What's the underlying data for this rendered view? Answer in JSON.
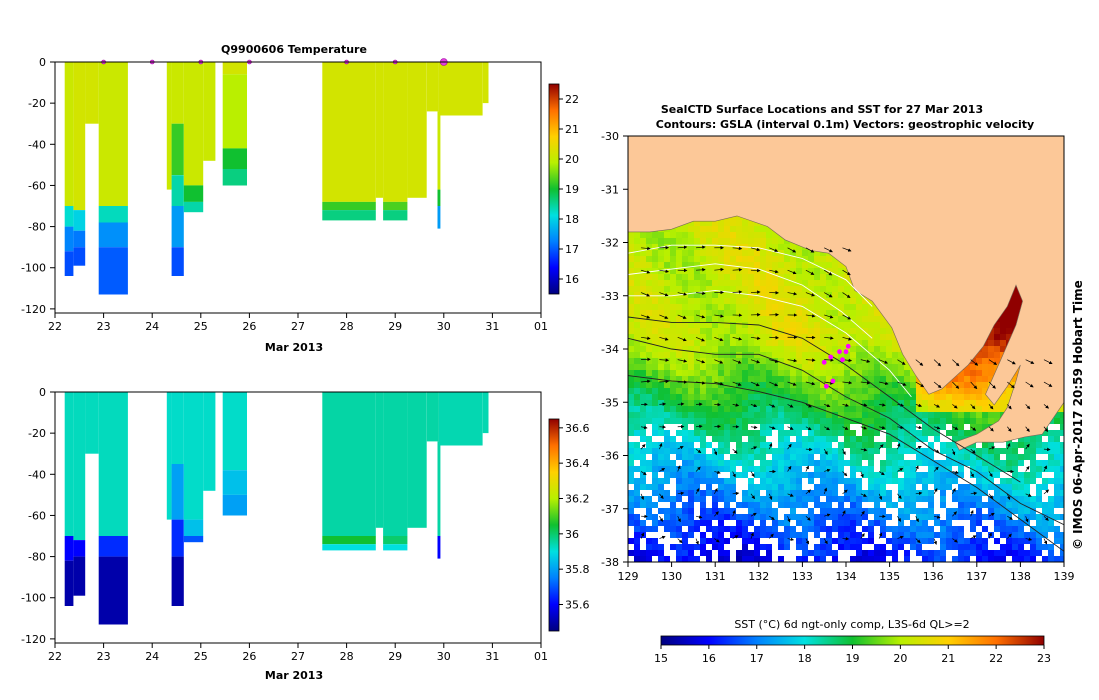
{
  "chart_data": [
    {
      "type": "heatmap",
      "id": "temperature-profile",
      "title": "Q9900606  Temperature",
      "xlabel": "Mar 2013",
      "ylabel": "",
      "x_ticks": [
        "22",
        "23",
        "24",
        "25",
        "26",
        "27",
        "28",
        "29",
        "30",
        "31",
        "01"
      ],
      "y_ticks": [
        "0",
        "-20",
        "-40",
        "-60",
        "-80",
        "-100",
        "-120"
      ],
      "xlim": [
        22,
        32
      ],
      "ylim": [
        -122,
        0
      ],
      "colorbar": {
        "min": 15.5,
        "max": 22.5,
        "ticks": [
          "16",
          "17",
          "18",
          "19",
          "20",
          "21",
          "22"
        ]
      },
      "profile_markers": [
        23.0,
        24.0,
        25.0,
        26.0,
        28.0,
        29.0,
        30.0
      ],
      "profiles": [
        {
          "x0": 22.2,
          "x1": 22.38,
          "bands": [
            [
              0,
              -70,
              20.1
            ],
            [
              -70,
              -80,
              18.2
            ],
            [
              -80,
              -92,
              17.3
            ],
            [
              -92,
              -104,
              16.9
            ]
          ]
        },
        {
          "x0": 22.38,
          "x1": 22.62,
          "bands": [
            [
              0,
              -72,
              20.2
            ],
            [
              -72,
              -82,
              18.0
            ],
            [
              -82,
              -90,
              17.2
            ],
            [
              -90,
              -99,
              16.9
            ]
          ]
        },
        {
          "x0": 22.62,
          "x1": 22.9,
          "bands": [
            [
              0,
              -30,
              20.2
            ]
          ]
        },
        {
          "x0": 22.9,
          "x1": 23.5,
          "bands": [
            [
              0,
              -70,
              20.1
            ],
            [
              -70,
              -78,
              18.3
            ],
            [
              -78,
              -90,
              17.4
            ],
            [
              -90,
              -113,
              17.0
            ]
          ]
        },
        {
          "x0": 24.3,
          "x1": 24.4,
          "bands": [
            [
              0,
              -62,
              20.1
            ]
          ]
        },
        {
          "x0": 24.4,
          "x1": 24.65,
          "bands": [
            [
              0,
              -30,
              20.1
            ],
            [
              -30,
              -55,
              19.2
            ],
            [
              -55,
              -70,
              18.4
            ],
            [
              -70,
              -90,
              17.5
            ],
            [
              -90,
              -104,
              16.9
            ]
          ]
        },
        {
          "x0": 24.65,
          "x1": 25.05,
          "bands": [
            [
              0,
              -60,
              20.1
            ],
            [
              -60,
              -68,
              19.0
            ],
            [
              -68,
              -73,
              18.4
            ]
          ]
        },
        {
          "x0": 25.05,
          "x1": 25.3,
          "bands": [
            [
              0,
              -48,
              20.1
            ]
          ]
        },
        {
          "x0": 25.45,
          "x1": 25.95,
          "bands": [
            [
              0,
              -6,
              20.2
            ],
            [
              -6,
              -42,
              19.9
            ],
            [
              -42,
              -52,
              19.0
            ],
            [
              -52,
              -60,
              18.6
            ]
          ]
        },
        {
          "x0": 27.5,
          "x1": 28.6,
          "bands": [
            [
              0,
              -68,
              20.2
            ],
            [
              -68,
              -72,
              19.2
            ],
            [
              -72,
              -77,
              18.6
            ]
          ]
        },
        {
          "x0": 28.6,
          "x1": 28.75,
          "bands": [
            [
              0,
              -66,
              20.2
            ]
          ]
        },
        {
          "x0": 28.75,
          "x1": 29.25,
          "bands": [
            [
              0,
              -68,
              20.2
            ],
            [
              -68,
              -72,
              19.3
            ],
            [
              -72,
              -77,
              18.6
            ]
          ]
        },
        {
          "x0": 29.25,
          "x1": 29.65,
          "bands": [
            [
              0,
              -66,
              20.2
            ]
          ]
        },
        {
          "x0": 29.65,
          "x1": 29.9,
          "bands": [
            [
              0,
              -24,
              20.2
            ]
          ]
        },
        {
          "x0": 29.87,
          "x1": 29.93,
          "bands": [
            [
              -24,
              -62,
              20.1
            ],
            [
              -62,
              -70,
              19.0
            ],
            [
              -70,
              -81,
              17.5
            ]
          ]
        },
        {
          "x0": 29.9,
          "x1": 30.8,
          "bands": [
            [
              0,
              -26,
              20.2
            ]
          ]
        },
        {
          "x0": 30.8,
          "x1": 30.92,
          "bands": [
            [
              0,
              -20,
              20.2
            ]
          ]
        }
      ]
    },
    {
      "type": "heatmap",
      "id": "second-variable-profile",
      "title": "",
      "xlabel": "Mar 2013",
      "ylabel": "",
      "x_ticks": [
        "22",
        "23",
        "24",
        "25",
        "26",
        "27",
        "28",
        "29",
        "30",
        "31",
        "01"
      ],
      "y_ticks": [
        "0",
        "-20",
        "-40",
        "-60",
        "-80",
        "-100",
        "-120"
      ],
      "xlim": [
        22,
        32
      ],
      "ylim": [
        -122,
        0
      ],
      "colorbar": {
        "min": 35.45,
        "max": 36.65,
        "ticks": [
          "35.6",
          "35.8",
          "36",
          "36.2",
          "36.4",
          "36.6"
        ]
      },
      "profiles": [
        {
          "x0": 22.2,
          "x1": 22.38,
          "bands": [
            [
              0,
              -70,
              35.93
            ],
            [
              -70,
              -82,
              35.6
            ],
            [
              -82,
              -104,
              35.5
            ]
          ]
        },
        {
          "x0": 22.38,
          "x1": 22.62,
          "bands": [
            [
              0,
              -72,
              35.93
            ],
            [
              -72,
              -80,
              35.6
            ],
            [
              -80,
              -99,
              35.5
            ]
          ]
        },
        {
          "x0": 22.62,
          "x1": 22.9,
          "bands": [
            [
              0,
              -30,
              35.93
            ]
          ]
        },
        {
          "x0": 22.9,
          "x1": 23.5,
          "bands": [
            [
              0,
              -70,
              35.93
            ],
            [
              -70,
              -80,
              35.65
            ],
            [
              -80,
              -113,
              35.5
            ]
          ]
        },
        {
          "x0": 24.3,
          "x1": 24.4,
          "bands": [
            [
              0,
              -62,
              35.92
            ]
          ]
        },
        {
          "x0": 24.4,
          "x1": 24.65,
          "bands": [
            [
              0,
              -35,
              35.92
            ],
            [
              -35,
              -62,
              35.8
            ],
            [
              -62,
              -80,
              35.65
            ],
            [
              -80,
              -104,
              35.5
            ]
          ]
        },
        {
          "x0": 24.65,
          "x1": 25.05,
          "bands": [
            [
              0,
              -62,
              35.92
            ],
            [
              -62,
              -70,
              35.85
            ],
            [
              -70,
              -73,
              35.7
            ]
          ]
        },
        {
          "x0": 25.05,
          "x1": 25.3,
          "bands": [
            [
              0,
              -48,
              35.92
            ]
          ]
        },
        {
          "x0": 25.45,
          "x1": 25.95,
          "bands": [
            [
              0,
              -38,
              35.92
            ],
            [
              -38,
              -50,
              35.85
            ],
            [
              -50,
              -60,
              35.8
            ]
          ]
        },
        {
          "x0": 27.5,
          "x1": 28.6,
          "bands": [
            [
              0,
              -70,
              35.95
            ],
            [
              -70,
              -74,
              36.05
            ],
            [
              -74,
              -77,
              35.9
            ]
          ]
        },
        {
          "x0": 28.6,
          "x1": 28.75,
          "bands": [
            [
              0,
              -66,
              35.95
            ]
          ]
        },
        {
          "x0": 28.75,
          "x1": 29.25,
          "bands": [
            [
              0,
              -70,
              35.95
            ],
            [
              -70,
              -74,
              36.0
            ],
            [
              -74,
              -77,
              35.9
            ]
          ]
        },
        {
          "x0": 29.25,
          "x1": 29.65,
          "bands": [
            [
              0,
              -66,
              35.95
            ]
          ]
        },
        {
          "x0": 29.65,
          "x1": 29.9,
          "bands": [
            [
              0,
              -24,
              35.95
            ]
          ]
        },
        {
          "x0": 29.87,
          "x1": 29.93,
          "bands": [
            [
              -24,
              -70,
              35.95
            ],
            [
              -70,
              -81,
              35.6
            ]
          ]
        },
        {
          "x0": 29.9,
          "x1": 30.8,
          "bands": [
            [
              0,
              -26,
              35.94
            ]
          ]
        },
        {
          "x0": 30.8,
          "x1": 30.92,
          "bands": [
            [
              0,
              -20,
              35.94
            ]
          ]
        }
      ]
    },
    {
      "type": "heatmap",
      "id": "sst-map",
      "title": "SealCTD Surface Locations and SST for 27 Mar 2013",
      "subtitle": "Contours: GSLA (interval 0.1m) Vectors: geostrophic velocity",
      "xlabel": "",
      "ylabel": "",
      "x_ticks": [
        "129",
        "130",
        "131",
        "132",
        "133",
        "134",
        "135",
        "136",
        "137",
        "138",
        "139"
      ],
      "y_ticks": [
        "-30",
        "-31",
        "-32",
        "-33",
        "-34",
        "-35",
        "-36",
        "-37",
        "-38"
      ],
      "xlim": [
        129,
        139
      ],
      "ylim": [
        -38,
        -30
      ],
      "colorbar_label": "SST (°C) 6d ngt-only comp, L3S-6d QL>=2",
      "colorbar": {
        "min": 15,
        "max": 23,
        "ticks": [
          "15",
          "16",
          "17",
          "18",
          "19",
          "20",
          "21",
          "22",
          "23"
        ]
      },
      "side_label": "© IMOS 06-Apr-2017 20:59 Hobart Time",
      "seal_positions": [
        [
          133.5,
          -34.25
        ],
        [
          133.65,
          -34.15
        ],
        [
          133.85,
          -34.05
        ],
        [
          134.05,
          -33.95
        ],
        [
          133.55,
          -34.7
        ],
        [
          133.7,
          -34.6
        ],
        [
          133.92,
          -34.2
        ],
        [
          134.0,
          -34.05
        ]
      ],
      "coast_polygon": [
        [
          129,
          -30
        ],
        [
          139,
          -30
        ],
        [
          139,
          -35.0
        ],
        [
          138.75,
          -35.3
        ],
        [
          138.5,
          -35.6
        ],
        [
          138.1,
          -35.65
        ],
        [
          137.6,
          -35.75
        ],
        [
          137.0,
          -35.75
        ],
        [
          136.6,
          -35.9
        ],
        [
          136.5,
          -35.75
        ],
        [
          137.0,
          -35.6
        ],
        [
          137.5,
          -35.35
        ],
        [
          137.7,
          -35.1
        ],
        [
          137.9,
          -34.6
        ],
        [
          138.0,
          -34.3
        ],
        [
          137.7,
          -34.7
        ],
        [
          137.4,
          -35.05
        ],
        [
          137.2,
          -34.85
        ],
        [
          137.55,
          -34.2
        ],
        [
          137.9,
          -33.55
        ],
        [
          138.05,
          -33.1
        ],
        [
          137.9,
          -32.8
        ],
        [
          137.7,
          -33.2
        ],
        [
          137.4,
          -33.55
        ],
        [
          137.15,
          -33.95
        ],
        [
          136.8,
          -34.3
        ],
        [
          136.2,
          -34.75
        ],
        [
          135.9,
          -34.85
        ],
        [
          135.6,
          -34.5
        ],
        [
          135.3,
          -34.1
        ],
        [
          135.05,
          -33.6
        ],
        [
          134.6,
          -33.1
        ],
        [
          134.2,
          -32.9
        ],
        [
          134.0,
          -32.45
        ],
        [
          133.6,
          -32.2
        ],
        [
          133.2,
          -32.15
        ],
        [
          132.6,
          -31.95
        ],
        [
          132.2,
          -31.7
        ],
        [
          131.5,
          -31.5
        ],
        [
          131.0,
          -31.6
        ],
        [
          130.5,
          -31.6
        ],
        [
          130.0,
          -31.75
        ],
        [
          129.5,
          -31.8
        ],
        [
          129,
          -31.8
        ]
      ],
      "gsla_contours": [
        [
          [
            129,
            -32.2
          ],
          [
            130,
            -32.05
          ],
          [
            131,
            -32.05
          ],
          [
            132,
            -32.1
          ],
          [
            133,
            -32.3
          ],
          [
            134,
            -32.7
          ],
          [
            134.6,
            -33.2
          ]
        ],
        [
          [
            129,
            -32.6
          ],
          [
            130,
            -32.5
          ],
          [
            131,
            -32.4
          ],
          [
            132,
            -32.5
          ],
          [
            133,
            -32.8
          ],
          [
            133.9,
            -33.3
          ],
          [
            134.6,
            -33.8
          ]
        ],
        [
          [
            129,
            -33.0
          ],
          [
            130,
            -33.0
          ],
          [
            131,
            -32.9
          ],
          [
            132,
            -33.0
          ],
          [
            133,
            -33.2
          ],
          [
            134,
            -33.7
          ],
          [
            135,
            -34.4
          ],
          [
            135.5,
            -34.9
          ]
        ],
        [
          [
            129,
            -33.4
          ],
          [
            130,
            -33.5
          ],
          [
            131,
            -33.5
          ],
          [
            132,
            -33.55
          ],
          [
            133,
            -33.8
          ],
          [
            134,
            -34.3
          ],
          [
            135,
            -34.9
          ],
          [
            136,
            -35.5
          ],
          [
            137,
            -36.0
          ],
          [
            138,
            -36.5
          ]
        ],
        [
          [
            129,
            -33.8
          ],
          [
            130,
            -34.0
          ],
          [
            131,
            -34.1
          ],
          [
            132,
            -34.1
          ],
          [
            133,
            -34.4
          ],
          [
            134,
            -34.9
          ],
          [
            135,
            -35.3
          ],
          [
            136,
            -35.9
          ],
          [
            137,
            -36.3
          ],
          [
            138,
            -36.9
          ],
          [
            139,
            -37.3
          ]
        ],
        [
          [
            129,
            -34.5
          ],
          [
            130,
            -34.6
          ],
          [
            131,
            -34.65
          ],
          [
            132,
            -34.8
          ],
          [
            133,
            -35.0
          ],
          [
            134,
            -35.3
          ],
          [
            135,
            -35.6
          ],
          [
            136,
            -36.1
          ],
          [
            137,
            -36.6
          ],
          [
            138,
            -37.2
          ],
          [
            139,
            -37.8
          ]
        ]
      ]
    }
  ]
}
